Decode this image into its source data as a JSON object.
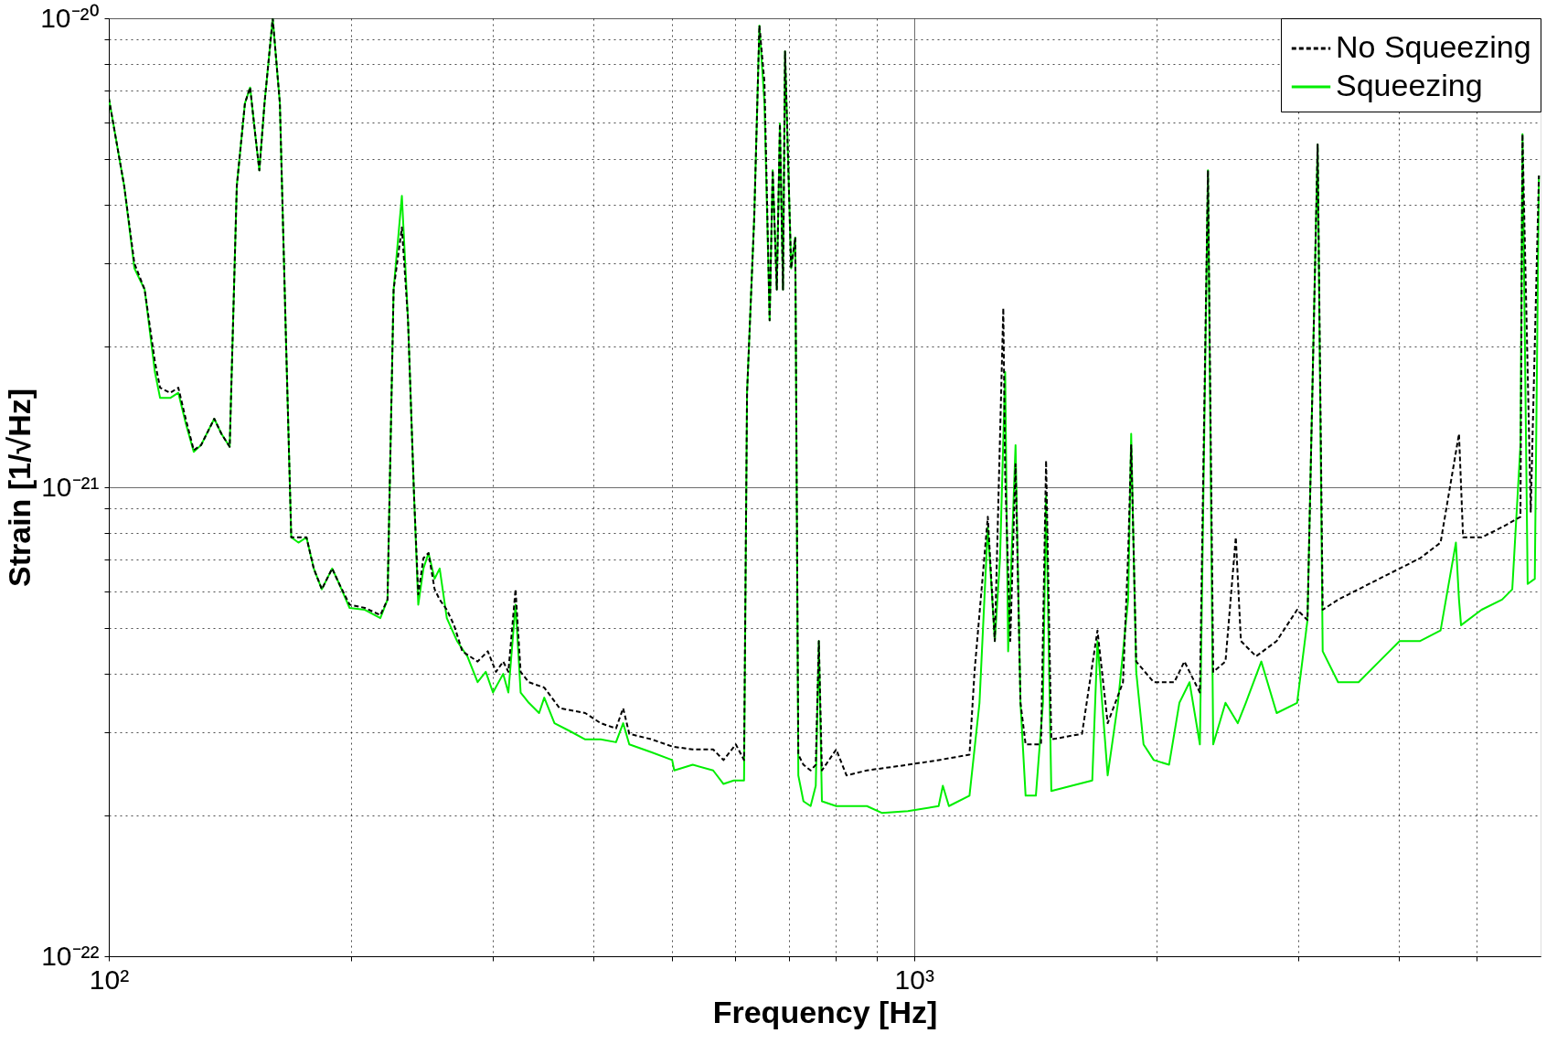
{
  "chart_data": {
    "type": "line",
    "xlabel": "Frequency [Hz]",
    "ylabel": "Strain [1/√Hz]",
    "log": "xy",
    "grid": true,
    "legend": "top right",
    "xlim": [
      100,
      6000
    ],
    "ylim": [
      1e-22,
      1e-20
    ],
    "xticks": [
      {
        "value": 100,
        "label": "10²"
      },
      {
        "value": 200,
        "label": null
      },
      {
        "value": 300,
        "label": null
      },
      {
        "value": 400,
        "label": null
      },
      {
        "value": 500,
        "label": null
      },
      {
        "value": 600,
        "label": null
      },
      {
        "value": 700,
        "label": null
      },
      {
        "value": 800,
        "label": null
      },
      {
        "value": 900,
        "label": null
      },
      {
        "value": 1000,
        "label": "10³"
      },
      {
        "value": 2000,
        "label": null
      },
      {
        "value": 3000,
        "label": null
      },
      {
        "value": 4000,
        "label": null
      },
      {
        "value": 5000,
        "label": null
      }
    ],
    "yticks": [
      {
        "value": 1e-22,
        "label": "10⁻²²"
      },
      {
        "value": 2e-22,
        "label": null
      },
      {
        "value": 3e-22,
        "label": null
      },
      {
        "value": 4e-22,
        "label": null
      },
      {
        "value": 5e-22,
        "label": null
      },
      {
        "value": 6e-22,
        "label": null
      },
      {
        "value": 7e-22,
        "label": null
      },
      {
        "value": 8e-22,
        "label": null
      },
      {
        "value": 9e-22,
        "label": null
      },
      {
        "value": 1e-21,
        "label": "10⁻²¹"
      },
      {
        "value": 2e-21,
        "label": null
      },
      {
        "value": 3e-21,
        "label": null
      },
      {
        "value": 4e-21,
        "label": null
      },
      {
        "value": 5e-21,
        "label": null
      },
      {
        "value": 6e-21,
        "label": null
      },
      {
        "value": 7e-21,
        "label": null
      },
      {
        "value": 8e-21,
        "label": null
      },
      {
        "value": 9e-21,
        "label": null
      },
      {
        "value": 1e-20,
        "label": "10⁻²⁰"
      }
    ],
    "series": [
      {
        "name": "No Squeezing",
        "color": "#000000",
        "line_style": "dashed",
        "x": [
          100,
          104.5,
          107.6,
          110.8,
          114.1,
          115.8,
          119.2,
          122.0,
          124.6,
          127.5,
          130.2,
          135.2,
          138.0,
          141.3,
          144.2,
          147.6,
          149.8,
          152.0,
          153.8,
          156.1,
          159.8,
          163.1,
          166.0,
          168.5,
          172.0,
          176.0,
          179.7,
          183.9,
          189.4,
          193.3,
          199.1,
          208.0,
          217.4,
          221.9,
          225.8,
          231.2,
          235.3,
          239.4,
          242.3,
          245.9,
          249.5,
          253.9,
          257.6,
          262.9,
          268.4,
          274.8,
          287.1,
          295.6,
          302.6,
          308.9,
          313.5,
          320.0,
          324.7,
          332.4,
          347.4,
          363.0,
          390.6,
          408.2,
          426.5,
          435.3,
          443.0,
          472.5,
          500.8,
          531.1,
          563.1,
          580.0,
          600.8,
          615.1,
          620.4,
          633.3,
          642.7,
          652.1,
          661.8,
          667.6,
          675.5,
          681.5,
          687.6,
          691.6,
          703.8,
          712.1,
          718.4,
          729.0,
          744.1,
          755.1,
          761.8,
          768.5,
          800.6,
          824.5,
          874.0,
          982.7,
          1073,
          1172,
          1189,
          1235,
          1260,
          1291,
          1298,
          1317,
          1337,
          1356,
          1376,
          1438,
          1459,
          1481,
          1617,
          1690,
          1740,
          1818,
          1845,
          1861,
          1888,
          1985,
          2105,
          2167,
          2265,
          2318,
          2353,
          2437,
          2510,
          2547,
          2660,
          2821,
          2991,
          3081,
          3172,
          3218,
          3363,
          3566,
          3782,
          4010,
          4253,
          4508,
          4752,
          4808,
          5069,
          5375,
          5665,
          5698,
          5834,
          5972
        ],
        "values": [
          6.76e-21,
          4.39e-21,
          3e-21,
          2.64e-21,
          1.85e-21,
          1.63e-21,
          1.59e-21,
          1.63e-21,
          1.4e-21,
          1.2e-21,
          1.23e-21,
          1.4e-21,
          1.3e-21,
          1.22e-21,
          4.39e-21,
          6.59e-21,
          7.12e-21,
          5.66e-21,
          4.74e-21,
          6.59e-21,
          1e-20,
          6.59e-21,
          2.05e-21,
          7.82e-22,
          7.82e-22,
          7.82e-22,
          6.71e-22,
          6.06e-22,
          6.71e-22,
          6.22e-22,
          5.62e-22,
          5.53e-22,
          5.34e-22,
          5.76e-22,
          2.64e-21,
          3.58e-21,
          2.27e-21,
          9.58e-22,
          5.91e-22,
          7.06e-22,
          7.24e-22,
          6.06e-22,
          5.76e-22,
          5.48e-22,
          5.08e-22,
          4.47e-22,
          4.25e-22,
          4.47e-22,
          4.04e-22,
          4.25e-22,
          4.04e-22,
          6.06e-22,
          4.04e-22,
          3.84e-22,
          3.74e-22,
          3.38e-22,
          3.3e-22,
          3.14e-22,
          3.06e-22,
          3.38e-22,
          2.98e-22,
          2.9e-22,
          2.8e-22,
          2.76e-22,
          2.76e-22,
          2.62e-22,
          2.83e-22,
          2.62e-22,
          1.59e-21,
          3.77e-21,
          9.65e-21,
          7.3e-21,
          2.27e-21,
          4.74e-21,
          2.64e-21,
          5.96e-21,
          2.64e-21,
          8.5e-21,
          2.93e-21,
          3.41e-21,
          2.69e-22,
          2.56e-22,
          2.49e-22,
          2.56e-22,
          4.7e-22,
          2.49e-22,
          2.76e-22,
          2.43e-22,
          2.49e-22,
          2.56e-22,
          2.62e-22,
          2.69e-22,
          4.04e-22,
          8.65e-22,
          4.7e-22,
          2.41e-21,
          1.06e-21,
          4.7e-22,
          1.12e-21,
          3.47e-22,
          2.83e-22,
          2.83e-22,
          1.14e-21,
          2.9e-22,
          2.98e-22,
          4.95e-22,
          3.14e-22,
          3.84e-22,
          7.24e-22,
          1.23e-21,
          4.25e-22,
          3.84e-22,
          3.84e-22,
          4.25e-22,
          3.65e-22,
          4.74e-21,
          4.04e-22,
          4.25e-22,
          7.82e-22,
          4.7e-22,
          4.36e-22,
          4.7e-22,
          5.48e-22,
          5.21e-22,
          5.38e-21,
          5.48e-22,
          5.76e-22,
          6.06e-22,
          6.38e-22,
          6.71e-22,
          7.06e-22,
          7.62e-22,
          1.3e-21,
          7.82e-22,
          7.82e-22,
          8.22e-22,
          8.65e-22,
          5.66e-21,
          8.87e-22,
          4.62e-21
        ]
      },
      {
        "name": "Squeezing",
        "color": "#00ee00",
        "line_style": "solid",
        "x": [
          100,
          104.5,
          107.6,
          110.8,
          114.1,
          115.8,
          119.2,
          122.0,
          124.6,
          127.5,
          130.2,
          135.2,
          138.0,
          141.3,
          144.2,
          147.6,
          149.8,
          152.0,
          153.8,
          156.1,
          159.8,
          163.1,
          166.0,
          168.5,
          172.0,
          176.0,
          179.7,
          183.9,
          189.4,
          193.3,
          199.1,
          208.0,
          217.4,
          221.9,
          225.8,
          231.2,
          235.3,
          239.4,
          242.3,
          245.9,
          249.5,
          253.9,
          257.6,
          262.9,
          270.7,
          278.8,
          287.1,
          293.9,
          300.0,
          308.9,
          313.5,
          320.0,
          324.7,
          332.4,
          342.3,
          347.4,
          357.7,
          373.8,
          390.6,
          408.2,
          426.5,
          435.3,
          443.0,
          472.5,
          500.8,
          503.8,
          531.1,
          563.1,
          580.0,
          597.3,
          615.1,
          620.4,
          633.3,
          642.7,
          652.1,
          661.8,
          667.6,
          675.5,
          681.5,
          687.6,
          691.6,
          703.8,
          712.1,
          718.4,
          729.0,
          744.1,
          755.1,
          761.8,
          768.5,
          800.6,
          874.0,
          913.2,
          982.7,
          1073,
          1086,
          1105,
          1172,
          1206,
          1235,
          1260,
          1279,
          1298,
          1309,
          1337,
          1356,
          1376,
          1417,
          1446,
          1459,
          1481,
          1570,
          1665,
          1690,
          1740,
          1792,
          1845,
          1861,
          1888,
          1928,
          1985,
          2074,
          2136,
          2199,
          2265,
          2318,
          2353,
          2437,
          2524,
          2583,
          2700,
          2821,
          2991,
          3081,
          3172,
          3218,
          3363,
          3566,
          3782,
          4010,
          4253,
          4508,
          4710,
          4752,
          4780,
          5069,
          5375,
          5534,
          5665,
          5698,
          5783,
          5902,
          5972
        ],
        "values": [
          6.76e-21,
          4.39e-21,
          2.93e-21,
          2.64e-21,
          1.76e-21,
          1.55e-21,
          1.55e-21,
          1.59e-21,
          1.37e-21,
          1.19e-21,
          1.23e-21,
          1.4e-21,
          1.3e-21,
          1.22e-21,
          4.39e-21,
          6.59e-21,
          7.12e-21,
          5.66e-21,
          4.74e-21,
          6.59e-21,
          1e-20,
          6.59e-21,
          2.05e-21,
          7.82e-22,
          7.62e-22,
          7.82e-22,
          6.71e-22,
          6.06e-22,
          6.71e-22,
          6.22e-22,
          5.53e-22,
          5.48e-22,
          5.26e-22,
          5.76e-22,
          2.64e-21,
          4.18e-21,
          2.27e-21,
          9.58e-22,
          5.62e-22,
          6.71e-22,
          7.24e-22,
          6.38e-22,
          6.71e-22,
          5.26e-22,
          4.7e-22,
          4.36e-22,
          3.84e-22,
          4.04e-22,
          3.65e-22,
          4e-22,
          3.65e-22,
          5.62e-22,
          3.65e-22,
          3.47e-22,
          3.3e-22,
          3.56e-22,
          3.14e-22,
          3.02e-22,
          2.9e-22,
          2.9e-22,
          2.86e-22,
          3.14e-22,
          2.83e-22,
          2.72e-22,
          2.62e-22,
          2.49e-22,
          2.56e-22,
          2.49e-22,
          2.33e-22,
          2.37e-22,
          2.37e-22,
          1.59e-21,
          3.77e-21,
          9.65e-21,
          6.59e-21,
          2.27e-21,
          4.74e-21,
          2.64e-21,
          5.96e-21,
          2.64e-21,
          8.5e-21,
          2.93e-21,
          3.41e-21,
          2.43e-22,
          2.14e-22,
          2.09e-22,
          2.31e-22,
          4.7e-22,
          2.14e-22,
          2.09e-22,
          2.09e-22,
          2.02e-22,
          2.04e-22,
          2.09e-22,
          2.31e-22,
          2.09e-22,
          2.2e-22,
          3.47e-22,
          8.22e-22,
          4.7e-22,
          7.06e-22,
          1.76e-21,
          4.47e-22,
          1.23e-21,
          3.47e-22,
          2.2e-22,
          2.2e-22,
          3.47e-22,
          9.58e-22,
          2.25e-22,
          2.31e-22,
          2.37e-22,
          4.7e-22,
          2.43e-22,
          3.47e-22,
          5.76e-22,
          1.3e-21,
          4.04e-22,
          2.83e-22,
          2.62e-22,
          2.56e-22,
          3.47e-22,
          3.84e-22,
          2.83e-22,
          4.74e-21,
          2.83e-22,
          3.47e-22,
          3.14e-22,
          3.47e-22,
          4.25e-22,
          3.3e-22,
          3.47e-22,
          5.21e-22,
          5.38e-21,
          4.47e-22,
          3.84e-22,
          3.84e-22,
          4.25e-22,
          4.7e-22,
          4.7e-22,
          4.95e-22,
          7.62e-22,
          5.76e-22,
          5.08e-22,
          5.48e-22,
          5.76e-22,
          6.06e-22,
          1.23e-21,
          5.66e-21,
          6.22e-22,
          6.38e-22,
          4.62e-21
        ]
      }
    ]
  }
}
